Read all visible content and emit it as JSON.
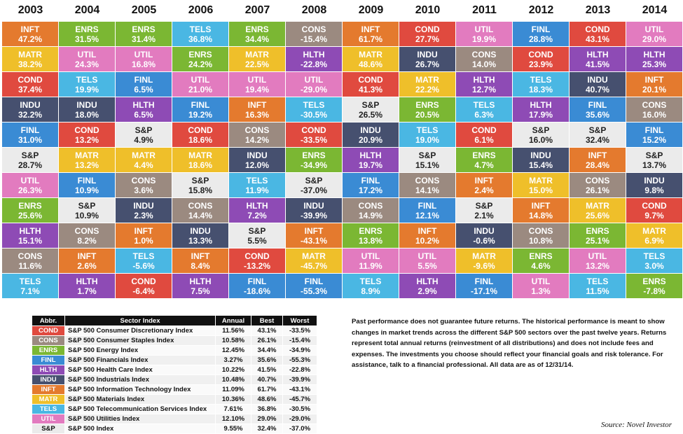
{
  "colors": {
    "COND": "#e04a3f",
    "CONS": "#9b8a80",
    "ENRS": "#7bb733",
    "FINL": "#3a8bd4",
    "HLTH": "#8e4bb5",
    "INDU": "#46506f",
    "INFT": "#e47a2e",
    "MATR": "#efbf2a",
    "TELS": "#4ab7e3",
    "UTIL": "#e27bbf",
    "S&P": "#ebebeb"
  },
  "chart_data": {
    "type": "table",
    "columns": [
      {
        "year": "2003",
        "cells": [
          [
            "INFT",
            "47.2%"
          ],
          [
            "MATR",
            "38.2%"
          ],
          [
            "COND",
            "37.4%"
          ],
          [
            "INDU",
            "32.2%"
          ],
          [
            "FINL",
            "31.0%"
          ],
          [
            "S&P",
            "28.7%"
          ],
          [
            "UTIL",
            "26.3%"
          ],
          [
            "ENRS",
            "25.6%"
          ],
          [
            "HLTH",
            "15.1%"
          ],
          [
            "CONS",
            "11.6%"
          ],
          [
            "TELS",
            "7.1%"
          ]
        ]
      },
      {
        "year": "2004",
        "cells": [
          [
            "ENRS",
            "31.5%"
          ],
          [
            "UTIL",
            "24.3%"
          ],
          [
            "TELS",
            "19.9%"
          ],
          [
            "INDU",
            "18.0%"
          ],
          [
            "COND",
            "13.2%"
          ],
          [
            "MATR",
            "13.2%"
          ],
          [
            "FINL",
            "10.9%"
          ],
          [
            "S&P",
            "10.9%"
          ],
          [
            "CONS",
            "8.2%"
          ],
          [
            "INFT",
            "2.6%"
          ],
          [
            "HLTH",
            "1.7%"
          ]
        ]
      },
      {
        "year": "2005",
        "cells": [
          [
            "ENRS",
            "31.4%"
          ],
          [
            "UTIL",
            "16.8%"
          ],
          [
            "FINL",
            "6.5%"
          ],
          [
            "HLTH",
            "6.5%"
          ],
          [
            "S&P",
            "4.9%"
          ],
          [
            "MATR",
            "4.4%"
          ],
          [
            "CONS",
            "3.6%"
          ],
          [
            "INDU",
            "2.3%"
          ],
          [
            "INFT",
            "1.0%"
          ],
          [
            "TELS",
            "-5.6%"
          ],
          [
            "COND",
            "-6.4%"
          ]
        ]
      },
      {
        "year": "2006",
        "cells": [
          [
            "TELS",
            "36.8%"
          ],
          [
            "ENRS",
            "24.2%"
          ],
          [
            "UTIL",
            "21.0%"
          ],
          [
            "FINL",
            "19.2%"
          ],
          [
            "COND",
            "18.6%"
          ],
          [
            "MATR",
            "18.6%"
          ],
          [
            "S&P",
            "15.8%"
          ],
          [
            "CONS",
            "14.4%"
          ],
          [
            "INDU",
            "13.3%"
          ],
          [
            "INFT",
            "8.4%"
          ],
          [
            "HLTH",
            "7.5%"
          ]
        ]
      },
      {
        "year": "2007",
        "cells": [
          [
            "ENRS",
            "34.4%"
          ],
          [
            "MATR",
            "22.5%"
          ],
          [
            "UTIL",
            "19.4%"
          ],
          [
            "INFT",
            "16.3%"
          ],
          [
            "CONS",
            "14.2%"
          ],
          [
            "INDU",
            "12.0%"
          ],
          [
            "TELS",
            "11.9%"
          ],
          [
            "HLTH",
            "7.2%"
          ],
          [
            "S&P",
            "5.5%"
          ],
          [
            "COND",
            "-13.2%"
          ],
          [
            "FINL",
            "-18.6%"
          ]
        ]
      },
      {
        "year": "2008",
        "cells": [
          [
            "CONS",
            "-15.4%"
          ],
          [
            "HLTH",
            "-22.8%"
          ],
          [
            "UTIL",
            "-29.0%"
          ],
          [
            "TELS",
            "-30.5%"
          ],
          [
            "COND",
            "-33.5%"
          ],
          [
            "ENRS",
            "-34.9%"
          ],
          [
            "S&P",
            "-37.0%"
          ],
          [
            "INDU",
            "-39.9%"
          ],
          [
            "INFT",
            "-43.1%"
          ],
          [
            "MATR",
            "-45.7%"
          ],
          [
            "FINL",
            "-55.3%"
          ]
        ]
      },
      {
        "year": "2009",
        "cells": [
          [
            "INFT",
            "61.7%"
          ],
          [
            "MATR",
            "48.6%"
          ],
          [
            "COND",
            "41.3%"
          ],
          [
            "S&P",
            "26.5%"
          ],
          [
            "INDU",
            "20.9%"
          ],
          [
            "HLTH",
            "19.7%"
          ],
          [
            "FINL",
            "17.2%"
          ],
          [
            "CONS",
            "14.9%"
          ],
          [
            "ENRS",
            "13.8%"
          ],
          [
            "UTIL",
            "11.9%"
          ],
          [
            "TELS",
            "8.9%"
          ]
        ]
      },
      {
        "year": "2010",
        "cells": [
          [
            "COND",
            "27.7%"
          ],
          [
            "INDU",
            "26.7%"
          ],
          [
            "MATR",
            "22.2%"
          ],
          [
            "ENRS",
            "20.5%"
          ],
          [
            "TELS",
            "19.0%"
          ],
          [
            "S&P",
            "15.1%"
          ],
          [
            "CONS",
            "14.1%"
          ],
          [
            "FINL",
            "12.1%"
          ],
          [
            "INFT",
            "10.2%"
          ],
          [
            "UTIL",
            "5.5%"
          ],
          [
            "HLTH",
            "2.9%"
          ]
        ]
      },
      {
        "year": "2011",
        "cells": [
          [
            "UTIL",
            "19.9%"
          ],
          [
            "CONS",
            "14.0%"
          ],
          [
            "HLTH",
            "12.7%"
          ],
          [
            "TELS",
            "6.3%"
          ],
          [
            "COND",
            "6.1%"
          ],
          [
            "ENRS",
            "4.7%"
          ],
          [
            "INFT",
            "2.4%"
          ],
          [
            "S&P",
            "2.1%"
          ],
          [
            "INDU",
            "-0.6%"
          ],
          [
            "MATR",
            "-9.6%"
          ],
          [
            "FINL",
            "-17.1%"
          ]
        ]
      },
      {
        "year": "2012",
        "cells": [
          [
            "FINL",
            "28.8%"
          ],
          [
            "COND",
            "23.9%"
          ],
          [
            "TELS",
            "18.3%"
          ],
          [
            "HLTH",
            "17.9%"
          ],
          [
            "S&P",
            "16.0%"
          ],
          [
            "INDU",
            "15.4%"
          ],
          [
            "MATR",
            "15.0%"
          ],
          [
            "INFT",
            "14.8%"
          ],
          [
            "CONS",
            "10.8%"
          ],
          [
            "ENRS",
            "4.6%"
          ],
          [
            "UTIL",
            "1.3%"
          ]
        ]
      },
      {
        "year": "2013",
        "cells": [
          [
            "COND",
            "43.1%"
          ],
          [
            "HLTH",
            "41.5%"
          ],
          [
            "INDU",
            "40.7%"
          ],
          [
            "FINL",
            "35.6%"
          ],
          [
            "S&P",
            "32.4%"
          ],
          [
            "INFT",
            "28.4%"
          ],
          [
            "CONS",
            "26.1%"
          ],
          [
            "MATR",
            "25.6%"
          ],
          [
            "ENRS",
            "25.1%"
          ],
          [
            "UTIL",
            "13.2%"
          ],
          [
            "TELS",
            "11.5%"
          ]
        ]
      },
      {
        "year": "2014",
        "cells": [
          [
            "UTIL",
            "29.0%"
          ],
          [
            "HLTH",
            "25.3%"
          ],
          [
            "INFT",
            "20.1%"
          ],
          [
            "CONS",
            "16.0%"
          ],
          [
            "FINL",
            "15.2%"
          ],
          [
            "S&P",
            "13.7%"
          ],
          [
            "INDU",
            "9.8%"
          ],
          [
            "COND",
            "9.7%"
          ],
          [
            "MATR",
            "6.9%"
          ],
          [
            "TELS",
            "3.0%"
          ],
          [
            "ENRS",
            "-7.8%"
          ]
        ]
      }
    ]
  },
  "legend": {
    "headers": [
      "Abbr.",
      "Sector Index",
      "Annual",
      "Best",
      "Worst"
    ],
    "rows": [
      [
        "COND",
        "S&P 500 Consumer Discretionary Index",
        "11.56%",
        "43.1%",
        "-33.5%"
      ],
      [
        "CONS",
        "S&P 500 Consumer Staples Index",
        "10.58%",
        "26.1%",
        "-15.4%"
      ],
      [
        "ENRS",
        "S&P 500 Energy Index",
        "12.45%",
        "34.4%",
        "-34.9%"
      ],
      [
        "FINL",
        "S&P 500 Financials Index",
        "3.27%",
        "35.6%",
        "-55.3%"
      ],
      [
        "HLTH",
        "S&P 500 Health Care Index",
        "10.22%",
        "41.5%",
        "-22.8%"
      ],
      [
        "INDU",
        "S&P 500 Industrials Index",
        "10.48%",
        "40.7%",
        "-39.9%"
      ],
      [
        "INFT",
        "S&P 500 Information Technology Index",
        "11.09%",
        "61.7%",
        "-43.1%"
      ],
      [
        "MATR",
        "S&P 500 Materials Index",
        "10.36%",
        "48.6%",
        "-45.7%"
      ],
      [
        "TELS",
        "S&P 500 Telecommunication Services Index",
        "7.61%",
        "36.8%",
        "-30.5%"
      ],
      [
        "UTIL",
        "S&P 500 Utilities Index",
        "12.10%",
        "29.0%",
        "-29.0%"
      ],
      [
        "S&P",
        "S&P 500 Index",
        "9.55%",
        "32.4%",
        "-37.0%"
      ]
    ]
  },
  "note": "Past performance does not guarantee future returns. The historical performance is meant to show changes in market trends across the different S&P 500 sectors over the past twelve years. Returns represent total annual returns (reinvestment of all distributions) and does not include fees and expenses. The investments you choose should reflect your financial goals and risk tolerance. For assistance, talk to a financial professional. All data are as of 12/31/14.",
  "source": "Source: Novel Investor"
}
